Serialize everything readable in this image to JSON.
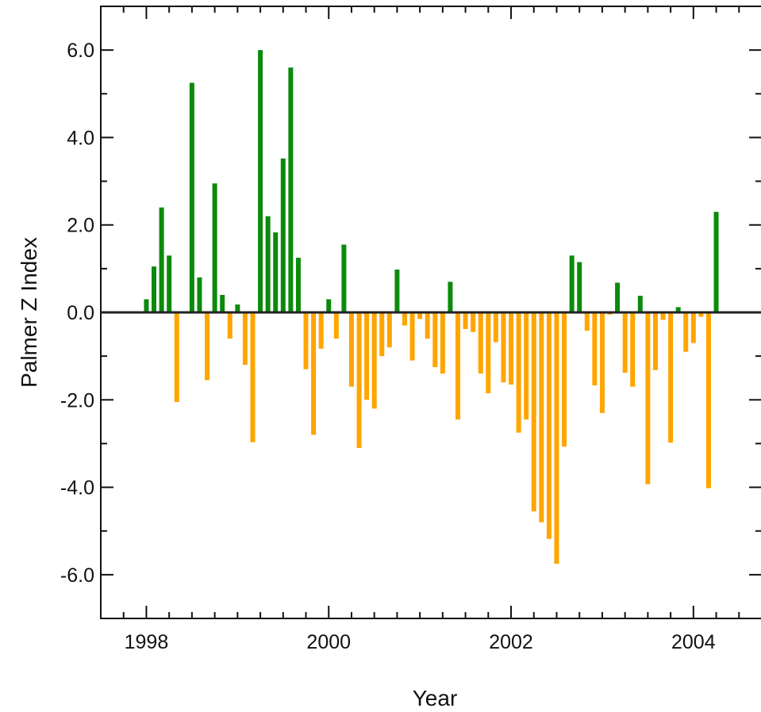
{
  "chart_data": {
    "type": "bar",
    "title": "",
    "xlabel": "Year",
    "ylabel": "Palmer Z Index",
    "xlim": [
      1997.5,
      2004.75
    ],
    "ylim": [
      -7.0,
      7.0
    ],
    "x_ticks": [
      1998,
      2000,
      2002,
      2004
    ],
    "x_tick_labels": [
      "1998",
      "2000",
      "2002",
      "2004"
    ],
    "y_ticks": [
      -6,
      -4,
      -2,
      0,
      2,
      4,
      6
    ],
    "y_tick_labels": [
      "-6.0",
      "-4.0",
      "-2.0",
      "0.0",
      "2.0",
      "4.0",
      "6.0"
    ],
    "positive_color": "#0b8a0b",
    "negative_color": "#ffa500",
    "zero_line_color": "#222222",
    "grid": false,
    "x_start": "1998-01",
    "x_step": "monthly",
    "values": [
      0.3,
      1.05,
      2.4,
      1.3,
      -2.05,
      0.0,
      5.25,
      0.8,
      -1.55,
      2.95,
      0.4,
      -0.6,
      0.18,
      -1.2,
      -2.97,
      6.0,
      2.2,
      1.83,
      3.52,
      5.6,
      1.25,
      -1.3,
      -2.8,
      -0.83,
      0.3,
      -0.6,
      1.55,
      -1.7,
      -3.1,
      -2.0,
      -2.2,
      -1.0,
      -0.8,
      0.98,
      -0.3,
      -1.1,
      -0.15,
      -0.6,
      -1.25,
      -1.4,
      0.7,
      -2.45,
      -0.38,
      -0.45,
      -1.4,
      -1.85,
      -0.68,
      -1.6,
      -1.65,
      -2.75,
      -2.45,
      -4.55,
      -4.8,
      -5.18,
      -5.75,
      -3.07,
      1.3,
      1.15,
      -0.42,
      -1.67,
      -2.3,
      -0.05,
      0.68,
      -1.38,
      -1.7,
      0.38,
      -3.93,
      -1.32,
      -0.17,
      -2.98,
      0.12,
      -0.9,
      -0.7,
      -0.1,
      -4.02,
      2.3
    ]
  }
}
